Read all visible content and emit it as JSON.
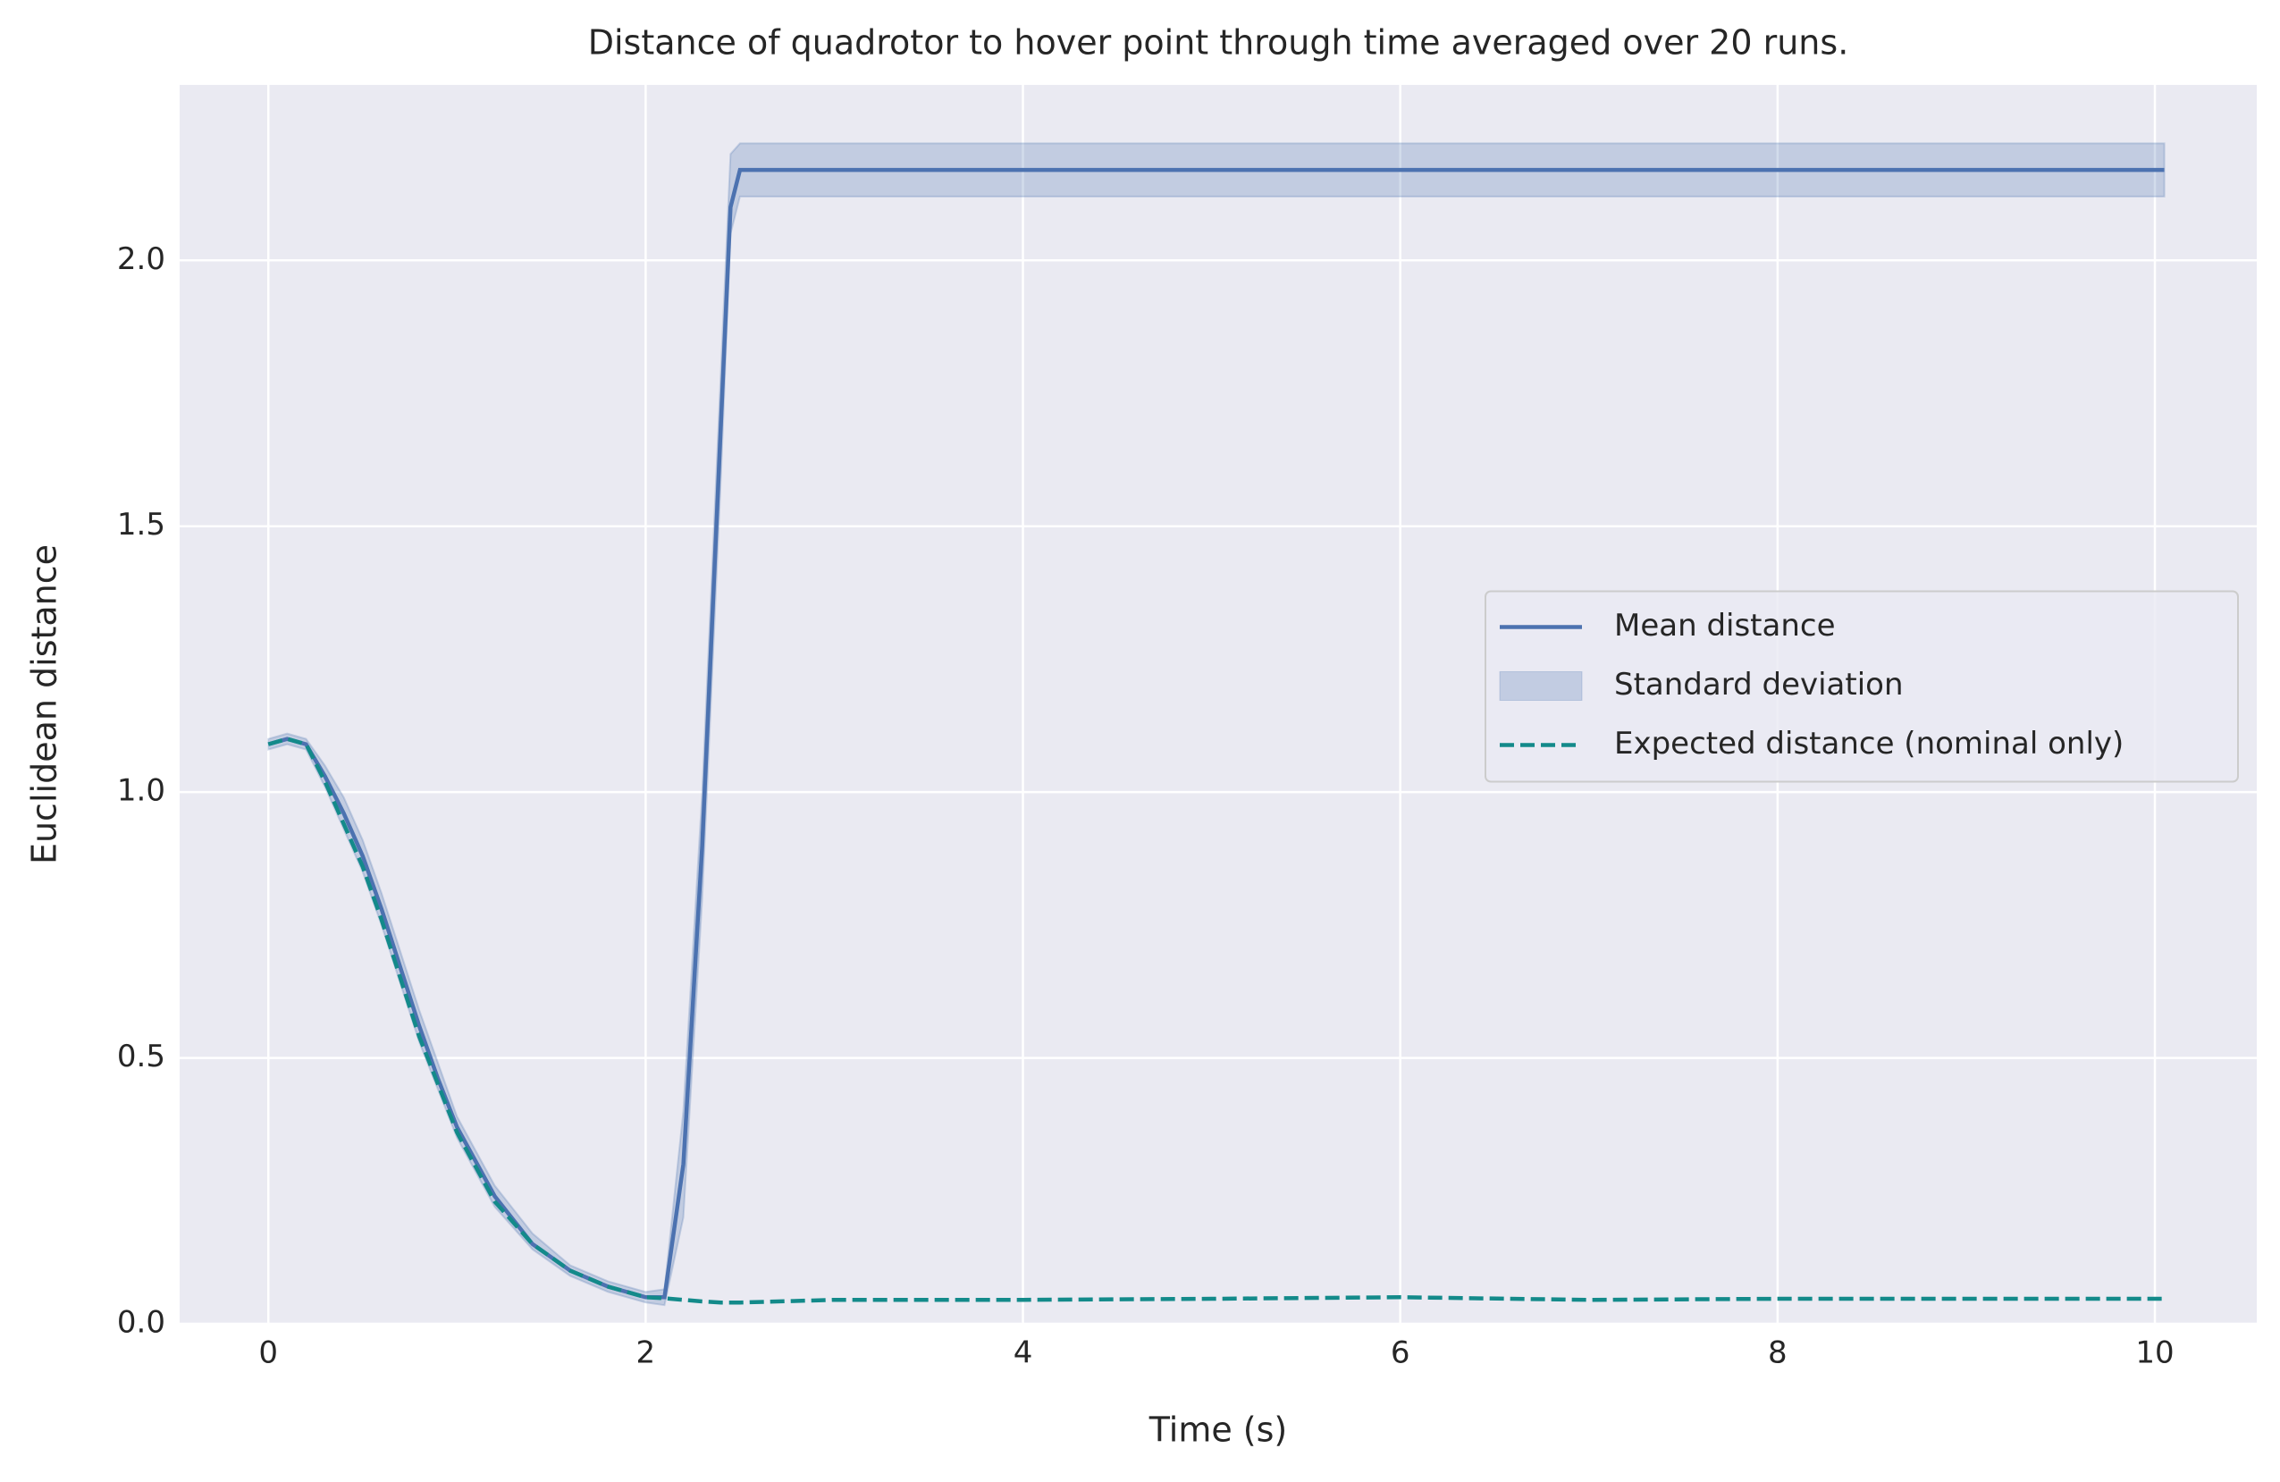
{
  "chart_data": {
    "type": "line",
    "title": "Distance of quadrotor to hover point through time averaged over 20 runs.",
    "x_label": "Time (s)",
    "y_label": "Euclidean distance",
    "x": [
      0,
      0.1,
      0.2,
      0.3,
      0.4,
      0.5,
      0.6,
      0.7,
      0.8,
      0.9,
      1.0,
      1.2,
      1.4,
      1.6,
      1.8,
      2.0,
      2.1,
      2.2,
      2.3,
      2.4,
      2.45,
      2.5,
      3,
      4,
      5,
      6,
      7,
      8,
      9,
      10.05
    ],
    "series": [
      {
        "name": "Mean distance",
        "color": "#4c72b0",
        "dash": false,
        "values": [
          1.09,
          1.1,
          1.09,
          1.03,
          0.96,
          0.88,
          0.78,
          0.67,
          0.56,
          0.46,
          0.37,
          0.24,
          0.15,
          0.1,
          0.07,
          0.05,
          0.05,
          0.3,
          0.9,
          1.7,
          2.1,
          2.17,
          2.17,
          2.17,
          2.17,
          2.17,
          2.17,
          2.17,
          2.17,
          2.17
        ]
      },
      {
        "name": "Expected distance (nominal only)",
        "color": "#138a8a",
        "dash": true,
        "values": [
          1.09,
          1.1,
          1.09,
          1.02,
          0.94,
          0.86,
          0.76,
          0.65,
          0.54,
          0.45,
          0.36,
          0.23,
          0.15,
          0.1,
          0.07,
          0.05,
          0.048,
          0.045,
          0.042,
          0.04,
          0.04,
          0.04,
          0.045,
          0.045,
          0.047,
          0.05,
          0.045,
          0.047,
          0.047,
          0.047
        ]
      }
    ],
    "band": {
      "name": "Standard deviation",
      "color": "#4c72b0",
      "lower": [
        1.08,
        1.09,
        1.08,
        1.01,
        0.93,
        0.85,
        0.75,
        0.64,
        0.53,
        0.44,
        0.35,
        0.22,
        0.14,
        0.09,
        0.06,
        0.04,
        0.035,
        0.2,
        0.8,
        1.6,
        2.05,
        2.12,
        2.12,
        2.12,
        2.12,
        2.12,
        2.12,
        2.12,
        2.12,
        2.12
      ],
      "upper": [
        1.1,
        1.11,
        1.1,
        1.05,
        0.99,
        0.91,
        0.81,
        0.7,
        0.59,
        0.49,
        0.39,
        0.26,
        0.17,
        0.11,
        0.08,
        0.06,
        0.065,
        0.4,
        1.0,
        1.8,
        2.2,
        2.22,
        2.22,
        2.22,
        2.22,
        2.22,
        2.22,
        2.22,
        2.22,
        2.22
      ]
    },
    "xlim": [
      -0.47,
      10.54
    ],
    "ylim": [
      0,
      2.33
    ],
    "xticks": [
      0,
      2,
      4,
      6,
      8,
      10
    ],
    "yticks": [
      {
        "value": 0,
        "label": "0.0"
      },
      {
        "value": 0.5,
        "label": "0.5"
      },
      {
        "value": 1,
        "label": "1.0"
      },
      {
        "value": 1.5,
        "label": "1.5"
      },
      {
        "value": 2,
        "label": "2.0"
      }
    ],
    "grid": true,
    "legend": "center right"
  }
}
